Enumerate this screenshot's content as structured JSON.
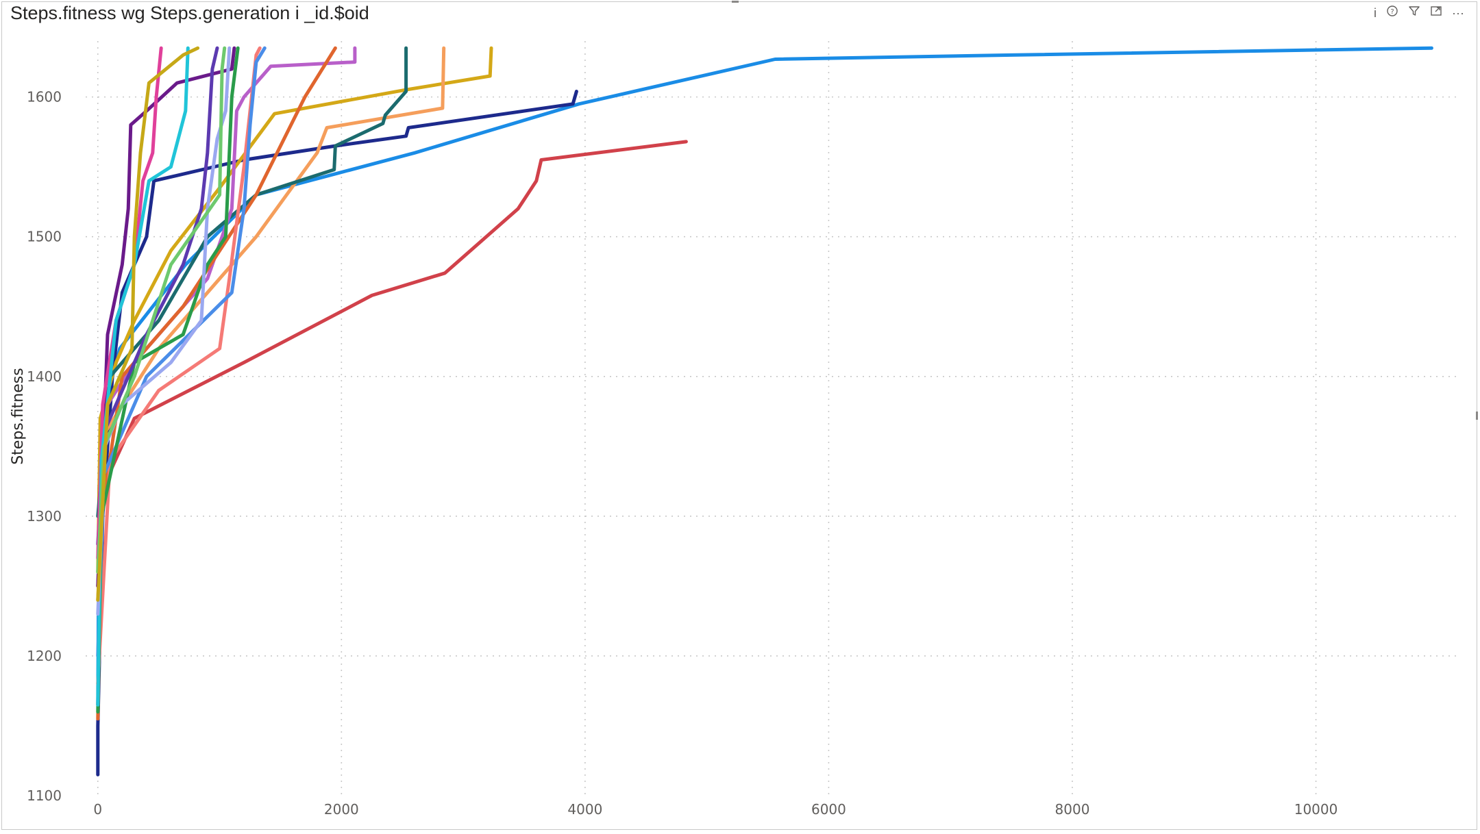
{
  "visual": {
    "title": "Steps.fitness wg Steps.generation i _id.$oid",
    "icons": [
      "info-icon",
      "help-icon",
      "filter-icon",
      "focus-mode-icon",
      "more-options-icon"
    ],
    "info_glyph": "i",
    "help_glyph": "?",
    "more_glyph": "···"
  },
  "chart_data": {
    "type": "line",
    "title": "Steps.fitness wg Steps.generation i _id.$oid",
    "xlabel": "",
    "ylabel": "Steps.fitness",
    "xlim": [
      -100,
      11150
    ],
    "ylim": [
      1100,
      1640
    ],
    "x_ticks": [
      0,
      2000,
      4000,
      6000,
      8000,
      10000
    ],
    "y_ticks": [
      1100,
      1200,
      1300,
      1400,
      1500,
      1600
    ],
    "grid": true,
    "legend": "none",
    "series": [
      {
        "color": "#1a8ce6",
        "points": [
          [
            0,
            1165
          ],
          [
            10,
            1320
          ],
          [
            60,
            1380
          ],
          [
            180,
            1420
          ],
          [
            720,
            1480
          ],
          [
            1300,
            1530
          ],
          [
            2600,
            1560
          ],
          [
            3950,
            1595
          ],
          [
            5560,
            1627
          ],
          [
            7500,
            1630
          ],
          [
            10950,
            1635
          ]
        ]
      },
      {
        "color": "#1d2a8c",
        "points": [
          [
            0,
            1115
          ],
          [
            0,
            1150
          ],
          [
            40,
            1300
          ],
          [
            120,
            1400
          ],
          [
            200,
            1460
          ],
          [
            400,
            1500
          ],
          [
            460,
            1540
          ],
          [
            1200,
            1555
          ],
          [
            1950,
            1565
          ],
          [
            2530,
            1572
          ],
          [
            2550,
            1578
          ],
          [
            3900,
            1595
          ],
          [
            3930,
            1604
          ]
        ]
      },
      {
        "color": "#d1414a",
        "points": [
          [
            0,
            1165
          ],
          [
            40,
            1320
          ],
          [
            300,
            1370
          ],
          [
            1200,
            1410
          ],
          [
            2250,
            1458
          ],
          [
            2850,
            1474
          ],
          [
            3450,
            1520
          ],
          [
            3600,
            1540
          ],
          [
            3640,
            1555
          ],
          [
            4830,
            1568
          ]
        ]
      },
      {
        "color": "#d4a817",
        "points": [
          [
            0,
            1260
          ],
          [
            20,
            1370
          ],
          [
            150,
            1410
          ],
          [
            300,
            1440
          ],
          [
            600,
            1490
          ],
          [
            1000,
            1535
          ],
          [
            1450,
            1588
          ],
          [
            2520,
            1605
          ],
          [
            3220,
            1615
          ],
          [
            3230,
            1635
          ]
        ]
      },
      {
        "color": "#f59e5b",
        "points": [
          [
            0,
            1240
          ],
          [
            60,
            1360
          ],
          [
            500,
            1420
          ],
          [
            900,
            1460
          ],
          [
            1300,
            1500
          ],
          [
            1800,
            1560
          ],
          [
            1880,
            1578
          ],
          [
            2830,
            1592
          ],
          [
            2840,
            1635
          ]
        ]
      },
      {
        "color": "#1b6b6e",
        "points": [
          [
            0,
            1300
          ],
          [
            100,
            1400
          ],
          [
            500,
            1440
          ],
          [
            900,
            1500
          ],
          [
            1300,
            1530
          ],
          [
            1940,
            1548
          ],
          [
            1950,
            1565
          ],
          [
            2340,
            1581
          ],
          [
            2360,
            1587
          ],
          [
            2530,
            1604
          ],
          [
            2530,
            1635
          ]
        ]
      },
      {
        "color": "#b85fc9",
        "points": [
          [
            0,
            1250
          ],
          [
            80,
            1380
          ],
          [
            300,
            1410
          ],
          [
            900,
            1470
          ],
          [
            1100,
            1520
          ],
          [
            1140,
            1590
          ],
          [
            1200,
            1600
          ],
          [
            1420,
            1622
          ],
          [
            2110,
            1625
          ],
          [
            2110,
            1635
          ]
        ]
      },
      {
        "color": "#e0652e",
        "points": [
          [
            0,
            1155
          ],
          [
            30,
            1300
          ],
          [
            200,
            1400
          ],
          [
            700,
            1450
          ],
          [
            1300,
            1530
          ],
          [
            1700,
            1600
          ],
          [
            1950,
            1635
          ]
        ]
      },
      {
        "color": "#f57a76",
        "points": [
          [
            0,
            1180
          ],
          [
            100,
            1340
          ],
          [
            500,
            1390
          ],
          [
            1000,
            1420
          ],
          [
            1080,
            1470
          ],
          [
            1200,
            1550
          ],
          [
            1300,
            1630
          ],
          [
            1330,
            1635
          ]
        ]
      },
      {
        "color": "#4a8de8",
        "points": [
          [
            0,
            1200
          ],
          [
            50,
            1330
          ],
          [
            400,
            1400
          ],
          [
            1100,
            1460
          ],
          [
            1200,
            1520
          ],
          [
            1250,
            1580
          ],
          [
            1300,
            1625
          ],
          [
            1370,
            1635
          ]
        ]
      },
      {
        "color": "#2a9c4a",
        "points": [
          [
            0,
            1160
          ],
          [
            30,
            1300
          ],
          [
            300,
            1410
          ],
          [
            700,
            1430
          ],
          [
            900,
            1480
          ],
          [
            1050,
            1500
          ],
          [
            1100,
            1600
          ],
          [
            1150,
            1635
          ]
        ]
      },
      {
        "color": "#6a1a8a",
        "points": [
          [
            0,
            1250
          ],
          [
            80,
            1430
          ],
          [
            200,
            1480
          ],
          [
            250,
            1520
          ],
          [
            270,
            1580
          ],
          [
            400,
            1590
          ],
          [
            650,
            1610
          ],
          [
            1100,
            1620
          ],
          [
            1120,
            1635
          ]
        ]
      },
      {
        "color": "#5c3ab0",
        "points": [
          [
            0,
            1280
          ],
          [
            50,
            1360
          ],
          [
            400,
            1430
          ],
          [
            700,
            1480
          ],
          [
            850,
            1520
          ],
          [
            900,
            1560
          ],
          [
            940,
            1620
          ],
          [
            980,
            1635
          ]
        ]
      },
      {
        "color": "#e0409a",
        "points": [
          [
            0,
            1270
          ],
          [
            40,
            1380
          ],
          [
            150,
            1440
          ],
          [
            300,
            1480
          ],
          [
            370,
            1540
          ],
          [
            450,
            1560
          ],
          [
            480,
            1600
          ],
          [
            520,
            1635
          ]
        ]
      },
      {
        "color": "#20c4d8",
        "points": [
          [
            0,
            1165
          ],
          [
            30,
            1340
          ],
          [
            150,
            1440
          ],
          [
            300,
            1480
          ],
          [
            420,
            1540
          ],
          [
            600,
            1550
          ],
          [
            720,
            1590
          ],
          [
            740,
            1635
          ]
        ]
      },
      {
        "color": "#9aa8f0",
        "points": [
          [
            0,
            1230
          ],
          [
            60,
            1350
          ],
          [
            200,
            1380
          ],
          [
            600,
            1410
          ],
          [
            850,
            1440
          ],
          [
            900,
            1520
          ],
          [
            980,
            1570
          ],
          [
            1050,
            1590
          ],
          [
            1080,
            1635
          ]
        ]
      },
      {
        "color": "#6ec96e",
        "points": [
          [
            0,
            1260
          ],
          [
            50,
            1350
          ],
          [
            300,
            1400
          ],
          [
            600,
            1480
          ],
          [
            1000,
            1530
          ],
          [
            1020,
            1620
          ],
          [
            1040,
            1635
          ]
        ]
      },
      {
        "color": "#c6a817",
        "points": [
          [
            0,
            1240
          ],
          [
            80,
            1380
          ],
          [
            280,
            1420
          ],
          [
            300,
            1500
          ],
          [
            350,
            1560
          ],
          [
            420,
            1610
          ],
          [
            700,
            1630
          ],
          [
            820,
            1635
          ]
        ]
      }
    ]
  }
}
